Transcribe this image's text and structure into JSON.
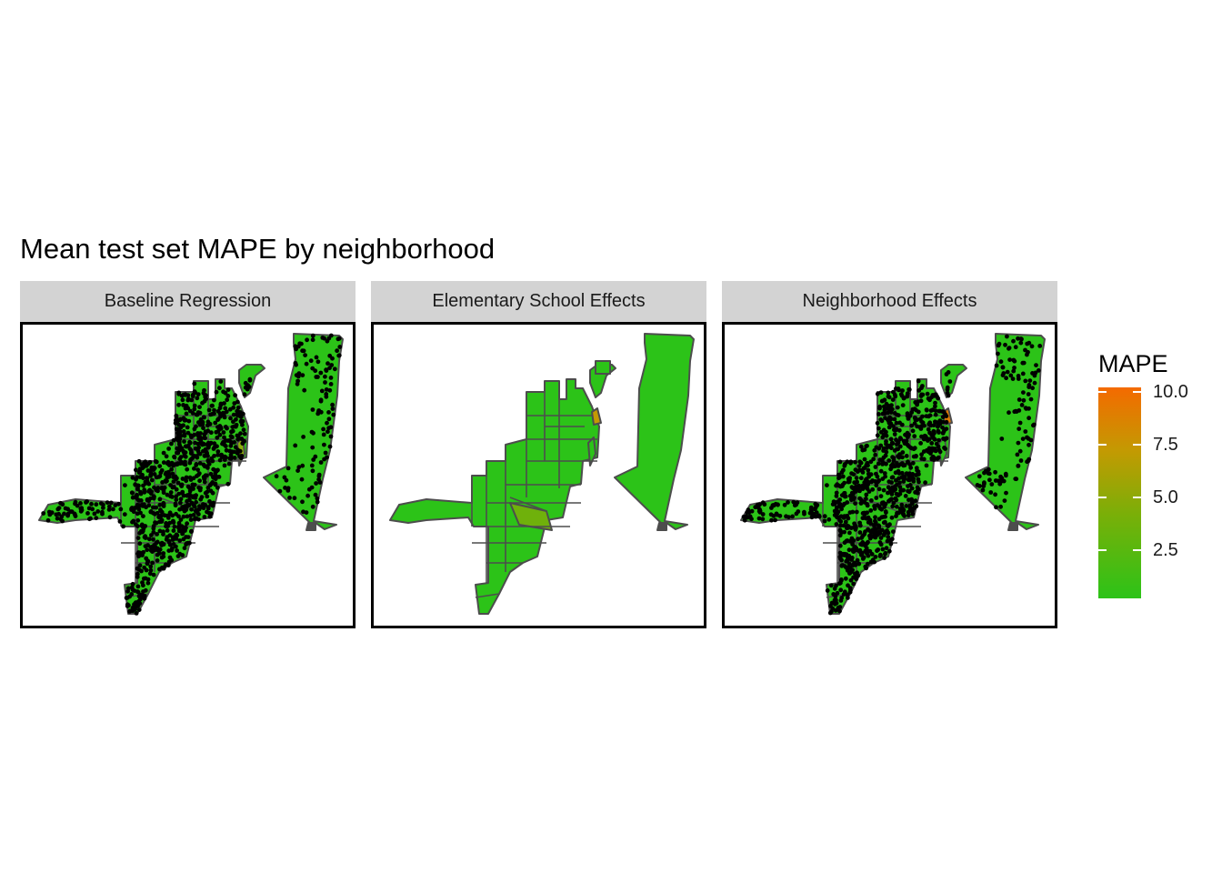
{
  "title": "Mean test set MAPE by neighborhood",
  "colors": {
    "low": "#2cc318",
    "mid": "#7aaf08",
    "high": "#f46a00",
    "border": "#4d4d4d",
    "strip": "#d3d3d3"
  },
  "panels": [
    {
      "label": "Baseline Regression",
      "points": "dense"
    },
    {
      "label": "Elementary School Effects",
      "points": "none"
    },
    {
      "label": "Neighborhood Effects",
      "points": "dense"
    }
  ],
  "legend": {
    "title": "MAPE",
    "ticks": [
      {
        "value": 10.0,
        "label": "10.0"
      },
      {
        "value": 7.5,
        "label": "7.5"
      },
      {
        "value": 5.0,
        "label": "5.0"
      },
      {
        "value": 2.5,
        "label": "2.5"
      }
    ],
    "min": 0.2,
    "max": 10.2
  }
}
